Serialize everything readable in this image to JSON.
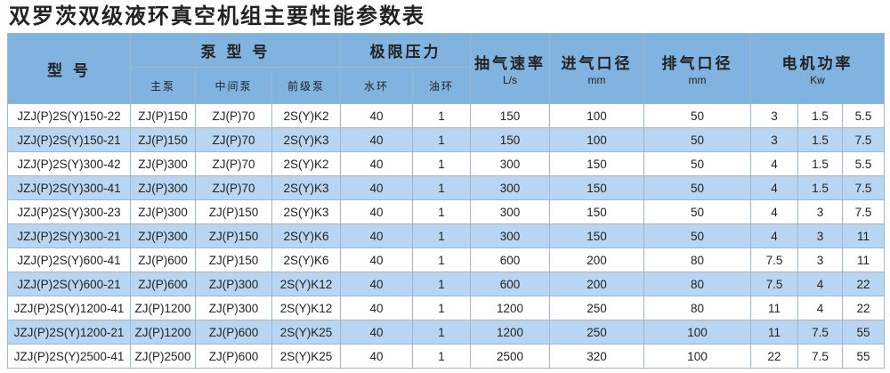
{
  "title": "双罗茨双级液环真空机组主要性能参数表",
  "colors": {
    "header_bg": "#80b3df",
    "alt_row_bg": "#b8d6f1"
  },
  "headers": {
    "model": "型  号",
    "pump_model": "泵 型 号",
    "main_pump": "主泵",
    "middle_pump": "中间泵",
    "fore_pump": "前级泵",
    "ultimate_pressure": "极限压力",
    "water_ring": "水环",
    "oil_ring": "油环",
    "pumping_speed": "抽气速率",
    "pumping_speed_unit": "L/s",
    "inlet": "进气口径",
    "inlet_unit": "mm",
    "outlet": "排气口径",
    "outlet_unit": "mm",
    "motor_power": "电机功率",
    "motor_power_unit": "Kw"
  },
  "rows": [
    [
      "JZJ(P)2S(Y)150-22",
      "ZJ(P)150",
      "ZJ(P)70",
      "2S(Y)K2",
      "40",
      "1",
      "150",
      "100",
      "50",
      "3",
      "1.5",
      "5.5"
    ],
    [
      "JZJ(P)2S(Y)150-21",
      "ZJ(P)150",
      "ZJ(P)70",
      "2S(Y)K3",
      "40",
      "1",
      "150",
      "100",
      "50",
      "3",
      "1.5",
      "7.5"
    ],
    [
      "JZJ(P)2S(Y)300-42",
      "ZJ(P)300",
      "ZJ(P)70",
      "2S(Y)K2",
      "40",
      "1",
      "300",
      "150",
      "50",
      "4",
      "1.5",
      "5.5"
    ],
    [
      "JZJ(P)2S(Y)300-41",
      "ZJ(P)300",
      "ZJ(P)70",
      "2S(Y)K3",
      "40",
      "1",
      "300",
      "150",
      "50",
      "4",
      "1.5",
      "7.5"
    ],
    [
      "JZJ(P)2S(Y)300-23",
      "ZJ(P)300",
      "ZJ(P)150",
      "2S(Y)K3",
      "40",
      "1",
      "300",
      "150",
      "50",
      "4",
      "3",
      "7.5"
    ],
    [
      "JZJ(P)2S(Y)300-21",
      "ZJ(P)300",
      "ZJ(P)150",
      "2S(Y)K6",
      "40",
      "1",
      "300",
      "150",
      "50",
      "4",
      "3",
      "11"
    ],
    [
      "JZJ(P)2S(Y)600-41",
      "ZJ(P)600",
      "ZJ(P)150",
      "2S(Y)K6",
      "40",
      "1",
      "600",
      "200",
      "80",
      "7.5",
      "3",
      "11"
    ],
    [
      "JZJ(P)2S(Y)600-21",
      "ZJ(P)600",
      "ZJ(P)300",
      "2S(Y)K12",
      "40",
      "1",
      "600",
      "200",
      "80",
      "7.5",
      "4",
      "22"
    ],
    [
      "JZJ(P)2S(Y)1200-41",
      "ZJ(P)1200",
      "ZJ(P)300",
      "2S(Y)K12",
      "40",
      "1",
      "1200",
      "250",
      "80",
      "11",
      "4",
      "22"
    ],
    [
      "JZJ(P)2S(Y)1200-21",
      "ZJ(P)1200",
      "ZJ(P)600",
      "2S(Y)K25",
      "40",
      "1",
      "1200",
      "250",
      "100",
      "11",
      "7.5",
      "55"
    ],
    [
      "JZJ(P)2S(Y)2500-41",
      "ZJ(P)2500",
      "ZJ(P)600",
      "2S(Y)K25",
      "40",
      "1",
      "2500",
      "320",
      "100",
      "22",
      "7.5",
      "55"
    ]
  ]
}
